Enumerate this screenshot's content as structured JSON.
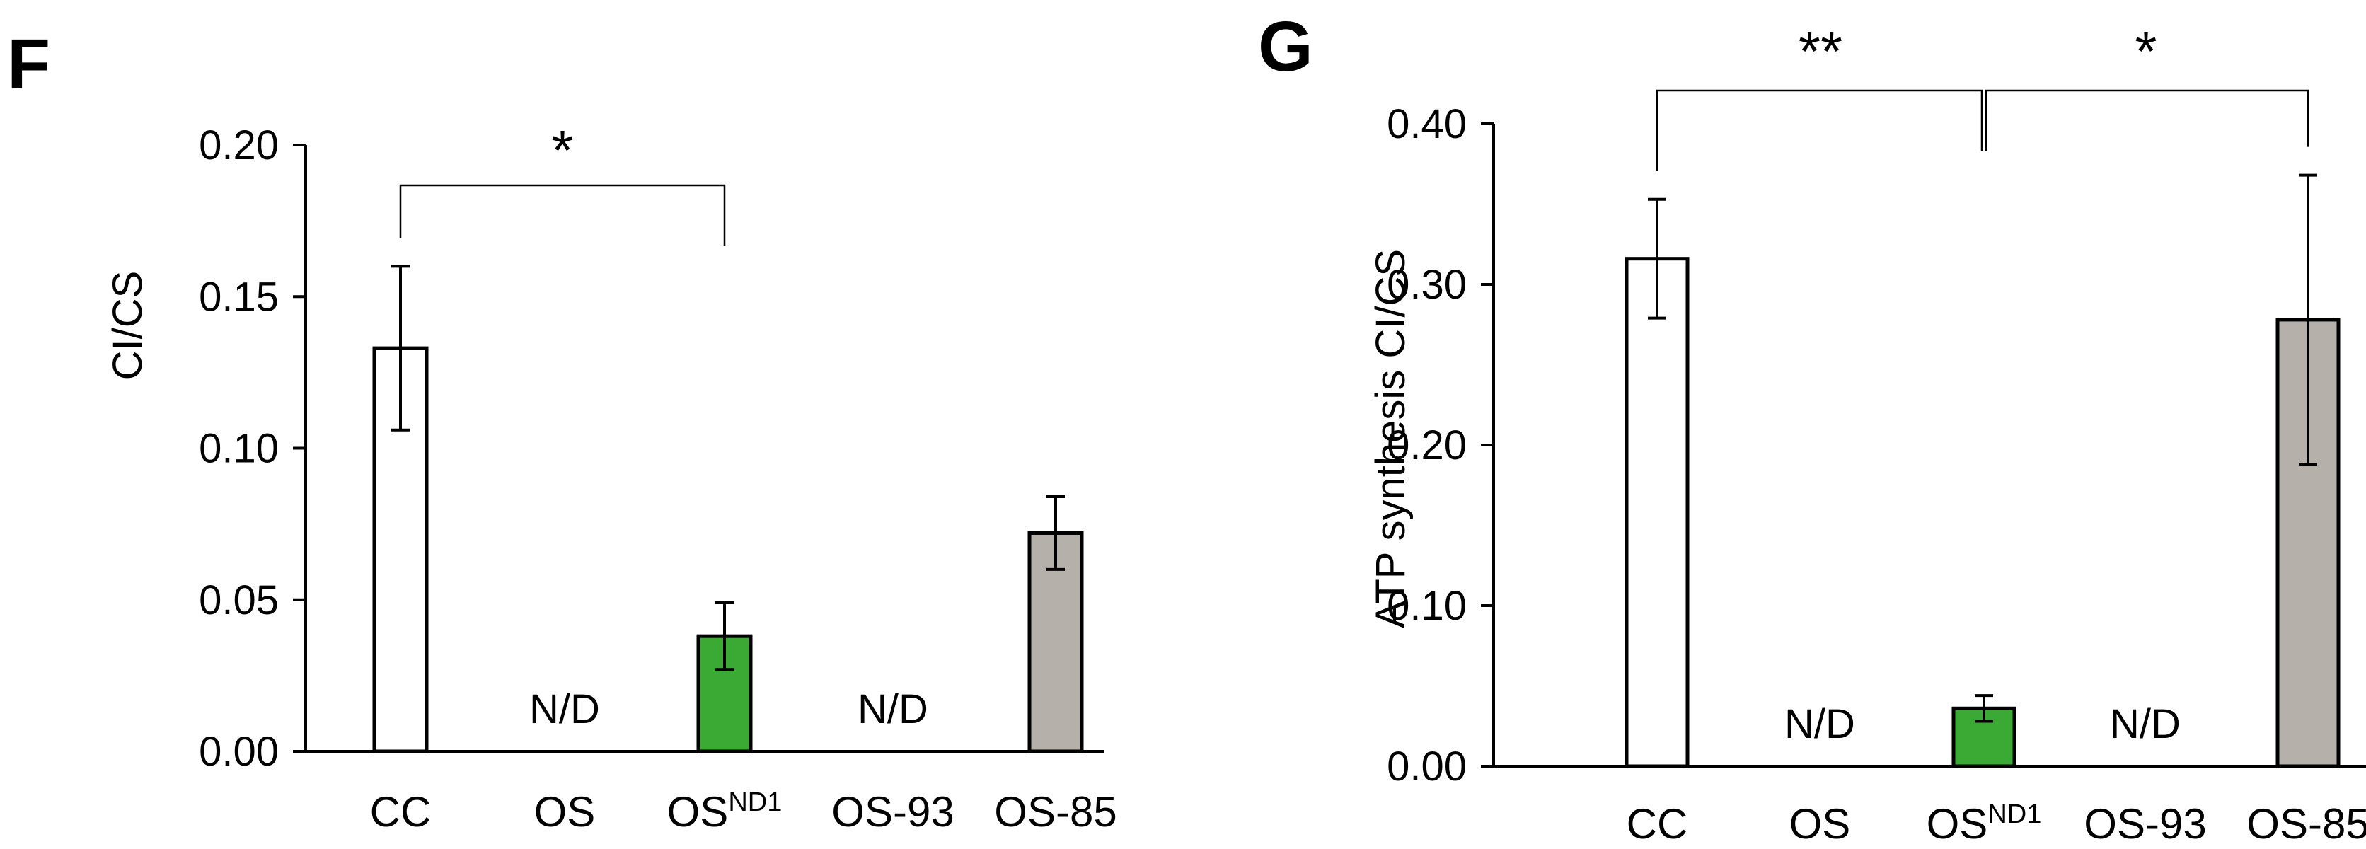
{
  "chart_data": [
    {
      "panel_label": "F",
      "type": "bar",
      "categories": [
        "CC",
        "OS",
        "OS",
        "OS-93",
        "OS-85"
      ],
      "category_superscripts": [
        "",
        "",
        "ND1",
        "",
        ""
      ],
      "values": [
        0.133,
        null,
        0.038,
        null,
        0.072
      ],
      "errors": [
        0.027,
        null,
        0.011,
        null,
        0.012
      ],
      "value_labels": [
        "",
        "N/D",
        "",
        "N/D",
        ""
      ],
      "bar_colors": [
        "#ffffff",
        "#ffffff",
        "#3aaa35",
        "#ffffff",
        "#b5b0aa"
      ],
      "xlabel": "",
      "ylabel": "CI/CS",
      "ylim": [
        0,
        0.2
      ],
      "yticks": [
        "0.00",
        "0.05",
        "0.10",
        "0.15",
        "0.20"
      ],
      "significance": [
        {
          "from": 0,
          "to": 2,
          "label": "*"
        }
      ]
    },
    {
      "panel_label": "G",
      "type": "bar",
      "categories": [
        "CC",
        "OS",
        "OS",
        "OS-93",
        "OS-85"
      ],
      "category_superscripts": [
        "",
        "",
        "ND1",
        "",
        ""
      ],
      "values": [
        0.316,
        null,
        0.036,
        null,
        0.278
      ],
      "errors": [
        0.037,
        null,
        0.008,
        null,
        0.09
      ],
      "value_labels": [
        "",
        "N/D",
        "",
        "N/D",
        ""
      ],
      "bar_colors": [
        "#ffffff",
        "#ffffff",
        "#3aaa35",
        "#ffffff",
        "#b5b0aa"
      ],
      "xlabel": "",
      "ylabel": "ATP synthesis CI/CS",
      "ylim": [
        0,
        0.4
      ],
      "yticks": [
        "0.00",
        "0.10",
        "0.20",
        "0.30",
        "0.40"
      ],
      "significance": [
        {
          "from": 0,
          "to": 2,
          "label": "**"
        },
        {
          "from": 2,
          "to": 4,
          "label": "*"
        }
      ]
    }
  ]
}
